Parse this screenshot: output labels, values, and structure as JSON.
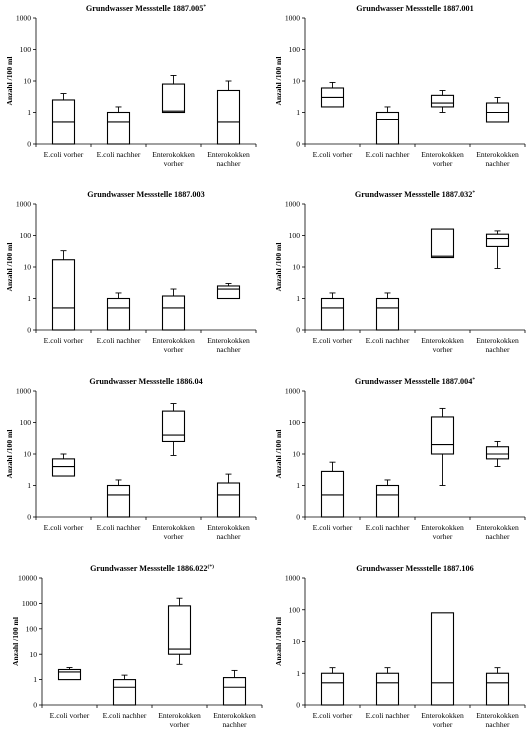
{
  "chart_data": [
    {
      "type": "box",
      "title": "Grundwasser Messstelle 1887.005",
      "title_mark": "*",
      "ylabel": "Anzahl /100 ml",
      "yscale": "log10 (with 0 at bottom)",
      "ytick_labels": [
        "0",
        "1",
        "10",
        "100",
        "1000"
      ],
      "categories": [
        "E.coli vorher",
        "E.coli nachher",
        "Enterokokken vorher",
        "Enterokokken nachher"
      ],
      "boxes": [
        {
          "min": 0,
          "q1": 0,
          "median": 0.5,
          "q3": 2.5,
          "max": 4
        },
        {
          "min": 0,
          "q1": 0,
          "median": 0.5,
          "q3": 1,
          "max": 1.5
        },
        {
          "min": 1,
          "q1": 1,
          "median": 1.1,
          "q3": 8,
          "max": 15
        },
        {
          "min": 0,
          "q1": 0,
          "median": 0.5,
          "q3": 5,
          "max": 10
        }
      ]
    },
    {
      "type": "box",
      "title": "Grundwasser Messstelle 1887.001",
      "title_mark": "",
      "ylabel": "Anzahl /100 ml",
      "yscale": "log10 (with 0 at bottom)",
      "ytick_labels": [
        "0",
        "1",
        "10",
        "100",
        "1000"
      ],
      "categories": [
        "E.coli vorher",
        "E.coli nachher",
        "Enterokokken vorher",
        "Enterokokken nachher"
      ],
      "boxes": [
        {
          "min": 1.5,
          "q1": 1.5,
          "median": 3,
          "q3": 6,
          "max": 9
        },
        {
          "min": 0,
          "q1": 0,
          "median": 0.6,
          "q3": 1,
          "max": 1.5
        },
        {
          "min": 1,
          "q1": 1.5,
          "median": 2,
          "q3": 3.5,
          "max": 5
        },
        {
          "min": 0.5,
          "q1": 0.5,
          "median": 1,
          "q3": 2,
          "max": 3
        }
      ]
    },
    {
      "type": "box",
      "title": "Grundwasser Messstelle 1887.003",
      "title_mark": "",
      "ylabel": "Anzahl /100 ml",
      "yscale": "log10 (with 0 at bottom)",
      "ytick_labels": [
        "0",
        "1",
        "10",
        "100",
        "1000"
      ],
      "categories": [
        "E.coli vorher",
        "E.coli nachher",
        "Enterokokken vorher",
        "Enterokokken nachher"
      ],
      "boxes": [
        {
          "min": 0,
          "q1": 0,
          "median": 0.5,
          "q3": 17,
          "max": 33
        },
        {
          "min": 0,
          "q1": 0,
          "median": 0.5,
          "q3": 1,
          "max": 1.5
        },
        {
          "min": 0,
          "q1": 0,
          "median": 0.5,
          "q3": 1.2,
          "max": 2
        },
        {
          "min": 1,
          "q1": 1,
          "median": 2,
          "q3": 2.5,
          "max": 3
        }
      ]
    },
    {
      "type": "box",
      "title": "Grundwasser Messstelle 1887.032",
      "title_mark": "*",
      "ylabel": "Anzahl /100 ml",
      "yscale": "log10 (with 0 at bottom)",
      "ytick_labels": [
        "0",
        "1",
        "10",
        "100",
        "1000"
      ],
      "categories": [
        "E.coli vorher",
        "E.coli nachher",
        "Enterokokken vorher",
        "Enterokokken nachher"
      ],
      "boxes": [
        {
          "min": 0,
          "q1": 0,
          "median": 0.5,
          "q3": 1,
          "max": 1.5
        },
        {
          "min": 0,
          "q1": 0,
          "median": 0.5,
          "q3": 1,
          "max": 1.5
        },
        {
          "min": 20,
          "q1": 20,
          "median": 22,
          "q3": 160,
          "max": 160
        },
        {
          "min": 9,
          "q1": 45,
          "median": 80,
          "q3": 110,
          "max": 140
        }
      ]
    },
    {
      "type": "box",
      "title": "Grundwasser Messstelle 1886.04",
      "title_mark": "",
      "ylabel": "Anzahl /100 ml",
      "yscale": "log10 (with 0 at bottom)",
      "ytick_labels": [
        "0",
        "1",
        "10",
        "100",
        "1000"
      ],
      "categories": [
        "E.coli vorher",
        "E.coli nachher",
        "Enterokokken vorher",
        "Enterokokken nachher"
      ],
      "boxes": [
        {
          "min": 2,
          "q1": 2,
          "median": 4,
          "q3": 7,
          "max": 10
        },
        {
          "min": 0,
          "q1": 0,
          "median": 0.5,
          "q3": 1,
          "max": 1.5
        },
        {
          "min": 9,
          "q1": 25,
          "median": 40,
          "q3": 230,
          "max": 400
        },
        {
          "min": 0,
          "q1": 0,
          "median": 0.5,
          "q3": 1.2,
          "max": 2.3
        }
      ]
    },
    {
      "type": "box",
      "title": "Grundwasser Messstelle 1887.004",
      "title_mark": "*",
      "ylabel": "Anzahl /100 ml",
      "yscale": "log10 (with 0 at bottom)",
      "ytick_labels": [
        "0",
        "1",
        "10",
        "100",
        "1000"
      ],
      "categories": [
        "E.coli vorher",
        "E.coli nachher",
        "Enterokokken vorher",
        "Enterokokken nachher"
      ],
      "boxes": [
        {
          "min": 0,
          "q1": 0,
          "median": 0.5,
          "q3": 2.8,
          "max": 5.5
        },
        {
          "min": 0,
          "q1": 0,
          "median": 0.5,
          "q3": 1,
          "max": 1.5
        },
        {
          "min": 1,
          "q1": 10,
          "median": 20,
          "q3": 150,
          "max": 280
        },
        {
          "min": 4,
          "q1": 7,
          "median": 10,
          "q3": 17,
          "max": 25
        }
      ]
    },
    {
      "type": "box",
      "title": "Grundwasser Messstelle 1886.022",
      "title_mark": "(*)",
      "ylabel": "Anzahl /100 ml",
      "yscale": "log10 (with 0 at bottom)",
      "ytick_labels": [
        "0",
        "1",
        "10",
        "100",
        "1000",
        "10000"
      ],
      "categories": [
        "E.coli vorher",
        "E.coli nachher",
        "Enterokokken vorher",
        "Enterokokken nachher"
      ],
      "boxes": [
        {
          "min": 1,
          "q1": 1,
          "median": 2,
          "q3": 2.5,
          "max": 3
        },
        {
          "min": 0,
          "q1": 0,
          "median": 0.5,
          "q3": 1,
          "max": 1.5
        },
        {
          "min": 4,
          "q1": 10,
          "median": 16,
          "q3": 800,
          "max": 1600
        },
        {
          "min": 0,
          "q1": 0,
          "median": 0.5,
          "q3": 1.2,
          "max": 2.3
        }
      ]
    },
    {
      "type": "box",
      "title": "Grundwasser Messstelle 1887.106",
      "title_mark": "",
      "ylabel": "Anzahl /100 ml",
      "yscale": "log10 (with 0 at bottom)",
      "ytick_labels": [
        "0",
        "1",
        "10",
        "100",
        "1000"
      ],
      "categories": [
        "E.coli vorher",
        "E.coli nachher",
        "Enterokokken vorher",
        "Enterokokken nachher"
      ],
      "boxes": [
        {
          "min": 0,
          "q1": 0,
          "median": 0.5,
          "q3": 1,
          "max": 1.5
        },
        {
          "min": 0,
          "q1": 0,
          "median": 0.5,
          "q3": 1,
          "max": 1.5
        },
        {
          "min": 0,
          "q1": 0,
          "median": 0.5,
          "q3": 80,
          "max": 80
        },
        {
          "min": 0,
          "q1": 0,
          "median": 0.5,
          "q3": 1,
          "max": 1.5
        }
      ]
    }
  ]
}
